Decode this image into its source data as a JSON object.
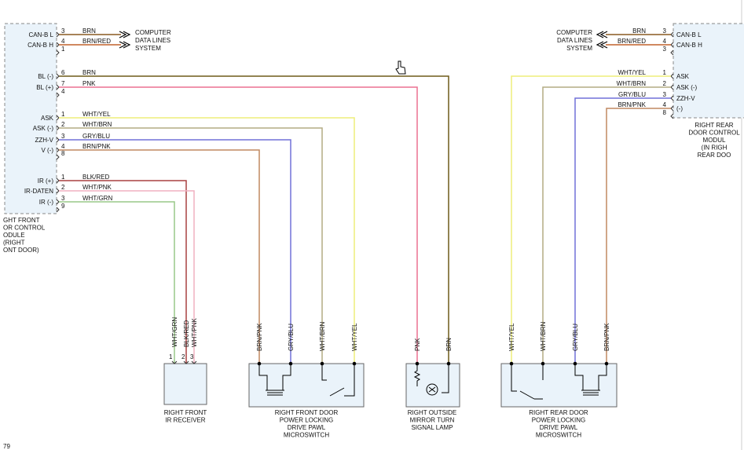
{
  "left_module": {
    "label": [
      "GHT FRONT",
      "OR CONTROL",
      "ODULE",
      "(RIGHT",
      "ONT DOOR)"
    ],
    "pins": [
      {
        "name": "CAN-B L",
        "pin": "3",
        "wire": "BRN"
      },
      {
        "name": "CAN-B H",
        "pin": "4",
        "wire": "BRN/RED"
      },
      {
        "pin": "1"
      },
      {
        "name": "BL (-)",
        "pin": "6",
        "wire": "BRN"
      },
      {
        "name": "BL (+)",
        "pin": "7",
        "wire": "PNK"
      },
      {
        "pin": "4"
      },
      {
        "name": "ASK",
        "pin": "1",
        "wire": "WHT/YEL"
      },
      {
        "name": "ASK (-)",
        "pin": "2",
        "wire": "WHT/BRN"
      },
      {
        "name": "ZZH-V",
        "pin": "3",
        "wire": "GRY/BLU"
      },
      {
        "name": "V (-)",
        "pin": "4",
        "wire": "BRN/PNK"
      },
      {
        "pin": "8"
      },
      {
        "name": "IR (+)",
        "pin": "1",
        "wire": "BLK/RED"
      },
      {
        "name": "IR-DATEN",
        "pin": "2",
        "wire": "WHT/PNK"
      },
      {
        "name": "IR (-)",
        "pin": "3",
        "wire": "WHT/GRN"
      },
      {
        "pin": "9"
      }
    ]
  },
  "left_data_lines": [
    "COMPUTER",
    "DATA LINES",
    "SYSTEM"
  ],
  "right_data_lines": [
    "COMPUTER",
    "DATA LINES",
    "SYSTEM"
  ],
  "right_module": {
    "label": [
      "RIGHT REAR",
      "DOOR CONTROL",
      "MODUL",
      "(IN RIGH",
      "REAR DOO"
    ],
    "pins": [
      {
        "name": "CAN-B L",
        "pin": "3",
        "wire": "BRN"
      },
      {
        "name": "CAN-B H",
        "pin": "4",
        "wire": "BRN/RED"
      },
      {
        "pin": "3"
      },
      {
        "name": "ASK",
        "pin": "1",
        "wire": "WHT/YEL"
      },
      {
        "name": "ASK (-)",
        "pin": "2",
        "wire": "WHT/BRN"
      },
      {
        "name": "ZZH-V",
        "pin": "3",
        "wire": "GRY/BLU"
      },
      {
        "name": "(-)",
        "pin": "4",
        "wire": "BRN/PNK"
      },
      {
        "pin": "8"
      }
    ]
  },
  "components": [
    {
      "label": [
        "RIGHT FRONT",
        "IR RECEIVER"
      ],
      "wires": [
        "WHT/GRN",
        "BLK/RED",
        "WHT/PNK"
      ],
      "pins": [
        "1",
        "2",
        "3"
      ]
    },
    {
      "label": [
        "RIGHT FRONT DOOR",
        "POWER LOCKING",
        "DRIVE PAWL",
        "MICROSWITCH"
      ],
      "wires": [
        "BRN/PNK",
        "GRY/BLU",
        "WHT/BRN",
        "WHT/YEL"
      ]
    },
    {
      "label": [
        "RIGHT OUTSIDE",
        "MIRROR TURN",
        "SIGNAL LAMP"
      ],
      "wires": [
        "PNK",
        "BRN"
      ]
    },
    {
      "label": [
        "RIGHT REAR DOOR",
        "POWER LOCKING",
        "DRIVE PAWL",
        "MICROSWITCH"
      ],
      "wires": [
        "WHT/YEL",
        "WHT/BRN",
        "GRY/BLU",
        "BRN/PNK"
      ]
    }
  ],
  "page_ref": "79"
}
